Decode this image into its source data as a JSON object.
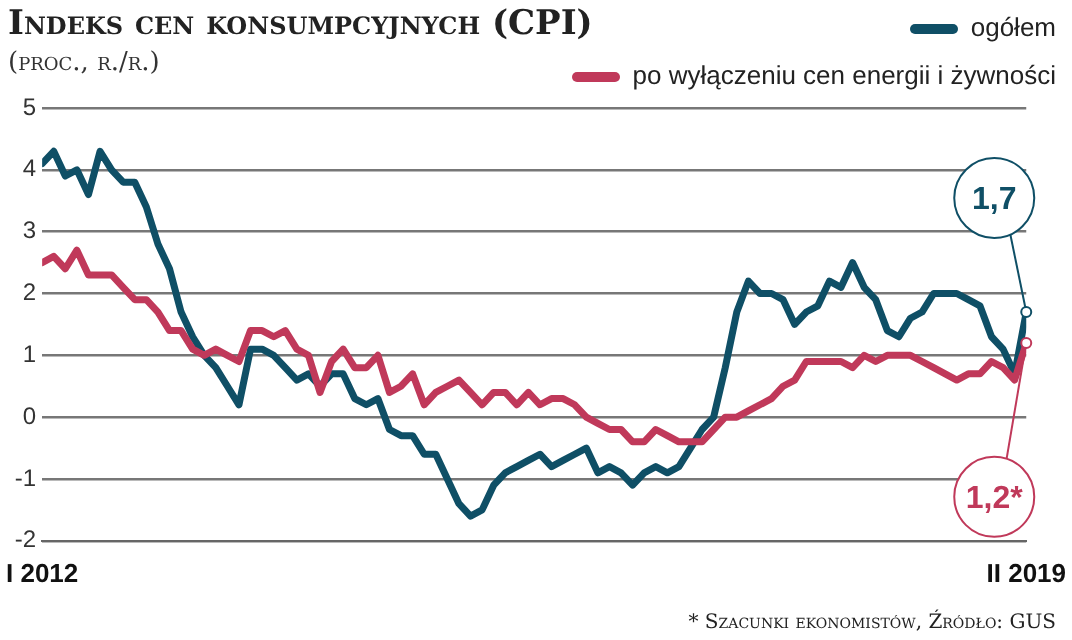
{
  "chart_data": {
    "type": "line",
    "title": "Indeks cen konsumpcyjnych (CPI)",
    "subtitle": "(proc., r./r.)",
    "x": [
      "2012-01",
      "2012-02",
      "2012-03",
      "2012-04",
      "2012-05",
      "2012-06",
      "2012-07",
      "2012-08",
      "2012-09",
      "2012-10",
      "2012-11",
      "2012-12",
      "2013-01",
      "2013-02",
      "2013-03",
      "2013-04",
      "2013-05",
      "2013-06",
      "2013-07",
      "2013-08",
      "2013-09",
      "2013-10",
      "2013-11",
      "2013-12",
      "2014-01",
      "2014-02",
      "2014-03",
      "2014-04",
      "2014-05",
      "2014-06",
      "2014-07",
      "2014-08",
      "2014-09",
      "2014-10",
      "2014-11",
      "2014-12",
      "2015-01",
      "2015-02",
      "2015-03",
      "2015-04",
      "2015-05",
      "2015-06",
      "2015-07",
      "2015-08",
      "2015-09",
      "2015-10",
      "2015-11",
      "2015-12",
      "2016-01",
      "2016-02",
      "2016-03",
      "2016-04",
      "2016-05",
      "2016-06",
      "2016-07",
      "2016-08",
      "2016-09",
      "2016-10",
      "2016-11",
      "2016-12",
      "2017-01",
      "2017-02",
      "2017-03",
      "2017-04",
      "2017-05",
      "2017-06",
      "2017-07",
      "2017-08",
      "2017-09",
      "2017-10",
      "2017-11",
      "2017-12",
      "2018-01",
      "2018-02",
      "2018-03",
      "2018-04",
      "2018-05",
      "2018-06",
      "2018-07",
      "2018-08",
      "2018-09",
      "2018-10",
      "2018-11",
      "2018-12",
      "2019-01",
      "2019-02"
    ],
    "series": [
      {
        "name": "ogółem",
        "color": "#0f4f66",
        "values": [
          4.1,
          4.3,
          3.9,
          4.0,
          3.6,
          4.3,
          4.0,
          3.8,
          3.8,
          3.4,
          2.8,
          2.4,
          1.7,
          1.3,
          1.0,
          0.8,
          0.5,
          0.2,
          1.1,
          1.1,
          1.0,
          0.8,
          0.6,
          0.7,
          0.5,
          0.7,
          0.7,
          0.3,
          0.2,
          0.3,
          -0.2,
          -0.3,
          -0.3,
          -0.6,
          -0.6,
          -1.0,
          -1.4,
          -1.6,
          -1.5,
          -1.1,
          -0.9,
          -0.8,
          -0.7,
          -0.6,
          -0.8,
          -0.7,
          -0.6,
          -0.5,
          -0.9,
          -0.8,
          -0.9,
          -1.1,
          -0.9,
          -0.8,
          -0.9,
          -0.8,
          -0.5,
          -0.2,
          0.0,
          0.8,
          1.7,
          2.2,
          2.0,
          2.0,
          1.9,
          1.5,
          1.7,
          1.8,
          2.2,
          2.1,
          2.5,
          2.1,
          1.9,
          1.4,
          1.3,
          1.6,
          1.7,
          2.0,
          2.0,
          2.0,
          1.9,
          1.8,
          1.3,
          1.1,
          0.7,
          1.7
        ]
      },
      {
        "name": "po wyłączeniu cen energii i żywności",
        "color": "#c0395a",
        "values": [
          2.5,
          2.6,
          2.4,
          2.7,
          2.3,
          2.3,
          2.3,
          2.1,
          1.9,
          1.9,
          1.7,
          1.4,
          1.4,
          1.1,
          1.0,
          1.1,
          1.0,
          0.9,
          1.4,
          1.4,
          1.3,
          1.4,
          1.1,
          1.0,
          0.4,
          0.9,
          1.1,
          0.8,
          0.8,
          1.0,
          0.4,
          0.5,
          0.7,
          0.2,
          0.4,
          0.5,
          0.6,
          0.4,
          0.2,
          0.4,
          0.4,
          0.2,
          0.4,
          0.2,
          0.3,
          0.3,
          0.2,
          0.0,
          -0.1,
          -0.2,
          -0.2,
          -0.4,
          -0.4,
          -0.2,
          -0.3,
          -0.4,
          -0.4,
          -0.4,
          -0.2,
          0.0,
          0.0,
          0.1,
          0.2,
          0.3,
          0.5,
          0.6,
          0.9,
          0.9,
          0.9,
          0.9,
          0.8,
          1.0,
          0.9,
          1.0,
          1.0,
          1.0,
          0.9,
          0.8,
          0.7,
          0.6,
          0.7,
          0.7,
          0.9,
          0.8,
          0.6,
          1.2
        ]
      }
    ],
    "xlim": [
      "2012-01",
      "2019-02"
    ],
    "xticks": [
      {
        "value": "2012-01",
        "label": "I 2012"
      },
      {
        "value": "2019-02",
        "label": "II 2019"
      }
    ],
    "ylim": [
      -2,
      5
    ],
    "yticks": [
      -2,
      -1,
      0,
      1,
      2,
      3,
      4,
      5
    ],
    "grid": "y",
    "legend": "top right",
    "marker": "none",
    "line_style": "solid",
    "annotations": [
      {
        "text": "1,7",
        "x": "2019-02",
        "y": 1.7
      },
      {
        "text": "1,2*",
        "x": "2019-02",
        "y": 1.2
      },
      "* Szacunki ekonomistów, Źródło: GUS"
    ]
  }
}
